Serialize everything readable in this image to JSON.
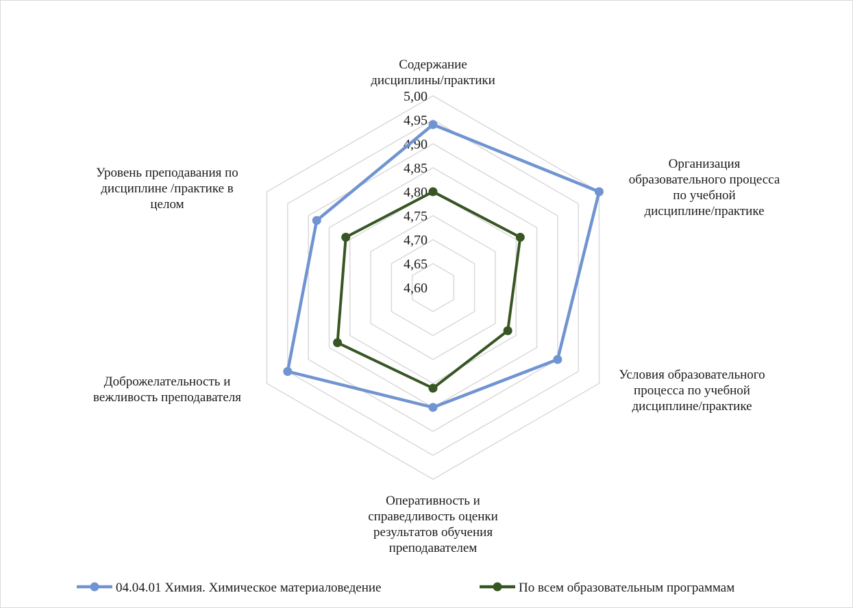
{
  "chart_data": {
    "type": "radar",
    "categories": [
      "Содержание дисциплины/практики",
      "Организация образовательного процесса по учебной дисциплине/практике",
      "Условия образовательного процесса по учебной дисциплине/практике",
      "Оперативность и справедливость оценки результатов обучения преподавателем",
      "Доброжелательность и вежливость преподавателя",
      "Уровень преподавания по дисциплине /практике в целом"
    ],
    "category_lines": [
      [
        "Содержание",
        "дисциплины/практики"
      ],
      [
        "Организация",
        "образовательного процесса",
        "по учебной",
        "дисциплине/практике"
      ],
      [
        "Условия образовательного",
        "процесса по учебной",
        "дисциплине/практике"
      ],
      [
        "Оперативность и",
        "справедливость оценки",
        "результатов обучения",
        "преподавателем"
      ],
      [
        "Доброжелательность и",
        "вежливость преподавателя"
      ],
      [
        "Уровень преподавания по",
        "дисциплине /практике в",
        "целом"
      ]
    ],
    "rlim": [
      4.6,
      5.0
    ],
    "ticks": [
      "4,60",
      "4,65",
      "4,70",
      "4,75",
      "4,80",
      "4,85",
      "4,90",
      "4,95",
      "5,00"
    ],
    "grid": true,
    "legend_position": "bottom",
    "series": [
      {
        "name": "04.04.01 Химия. Химическое материаловедение",
        "color": "#7094d1",
        "values": [
          4.94,
          5.0,
          4.9,
          4.85,
          4.95,
          4.88
        ]
      },
      {
        "name": "По всем образовательным программам",
        "color": "#375623",
        "values": [
          4.8,
          4.81,
          4.78,
          4.81,
          4.83,
          4.81
        ]
      }
    ]
  }
}
